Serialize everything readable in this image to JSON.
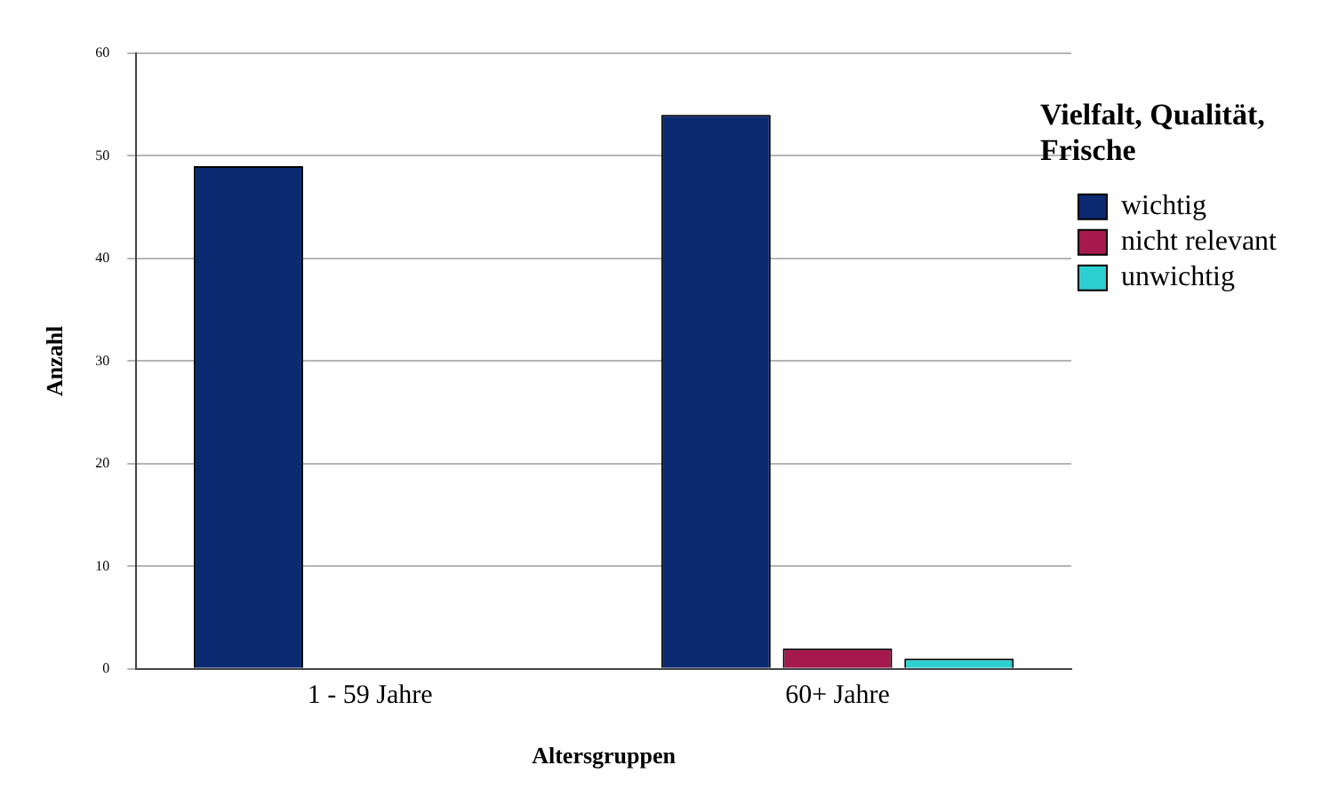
{
  "chart_data": {
    "type": "bar",
    "xlabel": "Altersgruppen",
    "ylabel": "Anzahl",
    "legend_title": "Vielfalt, Qualität, Frische",
    "categories": [
      "1 - 59 Jahre",
      "60+ Jahre"
    ],
    "series": [
      {
        "name": "wichtig",
        "color": "#0c2a72",
        "values": [
          49,
          54
        ]
      },
      {
        "name": "nicht relevant",
        "color": "#a6194d",
        "values": [
          0,
          2
        ]
      },
      {
        "name": "unwichtig",
        "color": "#2dd0d0",
        "values": [
          0,
          1
        ]
      }
    ],
    "ylim": [
      0,
      60
    ],
    "yticks": [
      0,
      10,
      20,
      30,
      40,
      50,
      60
    ],
    "grid": "y",
    "legend": "top right"
  }
}
